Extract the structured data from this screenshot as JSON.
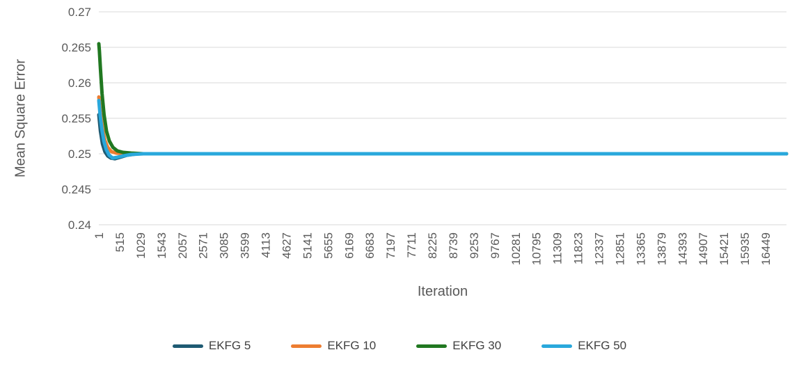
{
  "chart_data": {
    "type": "line",
    "title": "",
    "xlabel": "Iteration",
    "ylabel": "Mean Square Error",
    "xlim": [
      1,
      16963
    ],
    "ylim": [
      0.24,
      0.27
    ],
    "grid": "horizontal",
    "legend_position": "bottom",
    "x_ticks": [
      1,
      515,
      1029,
      1543,
      2057,
      2571,
      3085,
      3599,
      4113,
      4627,
      5141,
      5655,
      6169,
      6683,
      7197,
      7711,
      8225,
      8739,
      9253,
      9767,
      10281,
      10795,
      11309,
      11823,
      12337,
      12851,
      13365,
      13879,
      14393,
      14907,
      15421,
      15935,
      16449
    ],
    "y_ticks": [
      0.24,
      0.245,
      0.25,
      0.255,
      0.26,
      0.265,
      0.27
    ],
    "series": [
      {
        "name": "EKFG 5",
        "color": "#1F5B73",
        "points": [
          [
            1,
            0.2555
          ],
          [
            40,
            0.2532
          ],
          [
            90,
            0.2514
          ],
          [
            150,
            0.2503
          ],
          [
            220,
            0.2497
          ],
          [
            300,
            0.2494
          ],
          [
            400,
            0.2493
          ],
          [
            520,
            0.2495
          ],
          [
            700,
            0.2498
          ],
          [
            950,
            0.25
          ],
          [
            16963,
            0.25
          ]
        ]
      },
      {
        "name": "EKFG 10",
        "color": "#ED7D31",
        "points": [
          [
            1,
            0.258
          ],
          [
            40,
            0.2558
          ],
          [
            90,
            0.2536
          ],
          [
            150,
            0.2519
          ],
          [
            220,
            0.2509
          ],
          [
            310,
            0.2503
          ],
          [
            430,
            0.2501
          ],
          [
            620,
            0.25
          ],
          [
            16963,
            0.25
          ]
        ]
      },
      {
        "name": "EKFG 30",
        "color": "#217821",
        "points": [
          [
            1,
            0.2655
          ],
          [
            15,
            0.2645
          ],
          [
            40,
            0.262
          ],
          [
            80,
            0.2585
          ],
          [
            130,
            0.2555
          ],
          [
            190,
            0.2532
          ],
          [
            260,
            0.2518
          ],
          [
            350,
            0.2509
          ],
          [
            460,
            0.2504
          ],
          [
            600,
            0.2502
          ],
          [
            800,
            0.2501
          ],
          [
            1100,
            0.25
          ],
          [
            16963,
            0.25
          ]
        ]
      },
      {
        "name": "EKFG 50",
        "color": "#29A8DC",
        "points": [
          [
            1,
            0.2575
          ],
          [
            35,
            0.2553
          ],
          [
            75,
            0.2535
          ],
          [
            125,
            0.2518
          ],
          [
            185,
            0.2506
          ],
          [
            255,
            0.2498
          ],
          [
            340,
            0.2494
          ],
          [
            450,
            0.2495
          ],
          [
            600,
            0.2497
          ],
          [
            800,
            0.2499
          ],
          [
            1100,
            0.25
          ],
          [
            16963,
            0.25
          ]
        ]
      }
    ]
  },
  "colors": {
    "grid": "#D9D9D9",
    "axis_text": "#595959",
    "legend_text": "#404040",
    "background": "#FFFFFF"
  }
}
